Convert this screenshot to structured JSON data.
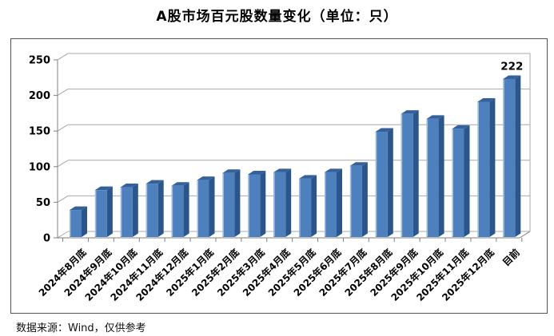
{
  "title": "A股市场百元股数量变化（单位：只）",
  "footer": {
    "source_note": "数据来源：Wind，仅供参考"
  },
  "chart_data": {
    "type": "bar",
    "style": "3d-column",
    "title": "A股市场百元股数量变化（单位：只）",
    "unit": "只",
    "categories": [
      "2024年8月底",
      "2024年9月底",
      "2024年10月底",
      "2024年11月底",
      "2024年12月底",
      "2025年1月底",
      "2025年2月底",
      "2025年3月底",
      "2025年4月底",
      "2025年5月底",
      "2025年6月底",
      "2025年7月底",
      "2025年8月底",
      "2025年9月底",
      "2025年10月底",
      "2025年11月底",
      "2025年12月底",
      "目前"
    ],
    "values": [
      38,
      66,
      70,
      75,
      72,
      80,
      90,
      88,
      91,
      82,
      91,
      100,
      148,
      173,
      166,
      152,
      190,
      222
    ],
    "data_label": {
      "category": "目前",
      "text": "222"
    },
    "ylim": [
      0,
      250
    ],
    "yticks": [
      0,
      50,
      100,
      150,
      200,
      250
    ],
    "grid": true,
    "legend": "none",
    "colors": {
      "bar_front": "#4d80bc",
      "bar_highlight": "#a3c0e0",
      "bar_top": "#35619b",
      "bar_side": "#2b568c",
      "gridline": "#a8a8a8",
      "axis": "#7f7f7f",
      "frame_border": "#545454",
      "background": "#ffffff",
      "text": "#000000"
    }
  }
}
